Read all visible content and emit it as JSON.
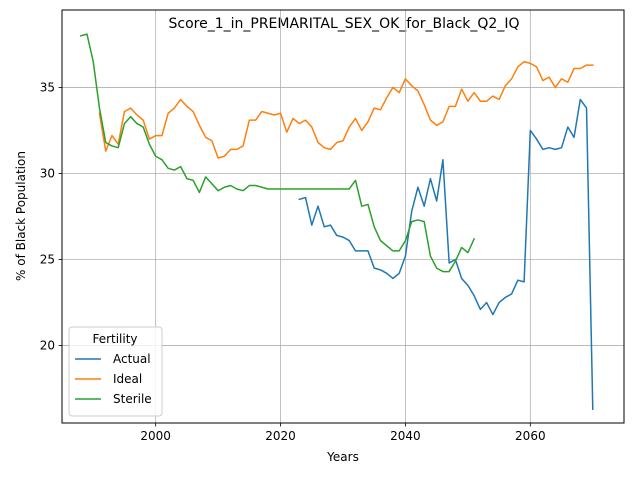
{
  "chart_data": {
    "type": "line",
    "title": "Score_1_in_PREMARITAL_SEX_OK_for_Black_Q2_IQ",
    "xlabel": "Years",
    "ylabel": "% of Black Population",
    "xlim": [
      1985,
      2075
    ],
    "ylim": [
      15.5,
      39.5
    ],
    "xticks": [
      2000,
      2020,
      2040,
      2060
    ],
    "yticks": [
      20,
      25,
      30,
      35
    ],
    "grid": true,
    "legend": {
      "title": "Fertility",
      "position": "lower-left"
    },
    "series": [
      {
        "name": "Actual",
        "color": "#1f77b4",
        "x": [
          2023,
          2024,
          2025,
          2026,
          2027,
          2028,
          2029,
          2030,
          2031,
          2032,
          2033,
          2034,
          2035,
          2036,
          2037,
          2038,
          2039,
          2040,
          2041,
          2042,
          2043,
          2044,
          2045,
          2046,
          2047,
          2048,
          2049,
          2050,
          2051,
          2052,
          2053,
          2054,
          2055,
          2056,
          2057,
          2058,
          2059,
          2060,
          2061,
          2062,
          2063,
          2064,
          2065,
          2066,
          2067,
          2068,
          2069,
          2070
        ],
        "values": [
          28.5,
          28.6,
          27.0,
          28.1,
          26.9,
          27.0,
          26.4,
          26.3,
          26.1,
          25.5,
          25.5,
          25.5,
          24.5,
          24.4,
          24.2,
          23.9,
          24.2,
          25.2,
          27.8,
          29.2,
          28.1,
          29.7,
          28.4,
          30.8,
          24.8,
          25.0,
          23.9,
          23.5,
          22.9,
          22.1,
          22.5,
          21.8,
          22.5,
          22.8,
          23.0,
          23.8,
          23.7,
          32.5,
          32.0,
          31.4,
          31.5,
          31.4,
          31.5,
          32.7,
          32.1,
          34.3,
          33.8,
          16.3
        ]
      },
      {
        "name": "Ideal",
        "color": "#ff7f0e",
        "x": [
          1991,
          1992,
          1993,
          1994,
          1995,
          1996,
          1997,
          1998,
          1999,
          2000,
          2001,
          2002,
          2003,
          2004,
          2005,
          2006,
          2007,
          2008,
          2009,
          2010,
          2011,
          2012,
          2013,
          2014,
          2015,
          2016,
          2017,
          2018,
          2019,
          2020,
          2021,
          2022,
          2023,
          2024,
          2025,
          2026,
          2027,
          2028,
          2029,
          2030,
          2031,
          2032,
          2033,
          2034,
          2035,
          2036,
          2037,
          2038,
          2039,
          2040,
          2041,
          2042,
          2043,
          2044,
          2045,
          2046,
          2047,
          2048,
          2049,
          2050,
          2051,
          2052,
          2053,
          2054,
          2055,
          2056,
          2057,
          2058,
          2059,
          2060,
          2061,
          2062,
          2063,
          2064,
          2065,
          2066,
          2067,
          2068,
          2069,
          2070
        ],
        "values": [
          33.5,
          31.3,
          32.2,
          31.7,
          33.6,
          33.8,
          33.4,
          33.1,
          32.0,
          32.2,
          32.2,
          33.5,
          33.8,
          34.3,
          33.9,
          33.6,
          32.8,
          32.1,
          31.9,
          30.9,
          31.0,
          31.4,
          31.4,
          31.6,
          33.1,
          33.1,
          33.6,
          33.5,
          33.4,
          33.5,
          32.4,
          33.2,
          32.9,
          33.1,
          32.7,
          31.8,
          31.5,
          31.4,
          31.8,
          31.9,
          32.7,
          33.2,
          32.5,
          33.0,
          33.8,
          33.7,
          34.4,
          35.0,
          34.7,
          35.5,
          35.1,
          34.8,
          34.0,
          33.1,
          32.8,
          33.0,
          33.9,
          33.9,
          34.9,
          34.2,
          34.7,
          34.2,
          34.2,
          34.5,
          34.3,
          35.1,
          35.5,
          36.2,
          36.5,
          36.4,
          36.2,
          35.4,
          35.6,
          35.0,
          35.5,
          35.3,
          36.1,
          36.1,
          36.3,
          36.3
        ]
      },
      {
        "name": "Sterile",
        "color": "#2ca02c",
        "x": [
          1988,
          1989,
          1990,
          1991,
          1992,
          1993,
          1994,
          1995,
          1996,
          1997,
          1998,
          1999,
          2000,
          2001,
          2002,
          2003,
          2004,
          2005,
          2006,
          2007,
          2008,
          2009,
          2010,
          2011,
          2012,
          2013,
          2014,
          2015,
          2016,
          2017,
          2018,
          2019,
          2020,
          2021,
          2022,
          2023,
          2024,
          2025,
          2026,
          2027,
          2028,
          2029,
          2030,
          2031,
          2032,
          2033,
          2034,
          2035,
          2036,
          2037,
          2038,
          2039,
          2040,
          2041,
          2042,
          2043,
          2044,
          2045,
          2046,
          2047,
          2048,
          2049,
          2050,
          2051
        ],
        "values": [
          38.0,
          38.1,
          36.5,
          33.8,
          31.8,
          31.6,
          31.5,
          32.9,
          33.3,
          32.9,
          32.7,
          31.7,
          31.0,
          30.8,
          30.3,
          30.2,
          30.4,
          29.7,
          29.6,
          28.9,
          29.8,
          29.4,
          29.0,
          29.2,
          29.3,
          29.1,
          29.0,
          29.3,
          29.3,
          29.2,
          29.1,
          29.1,
          29.1,
          29.1,
          29.1,
          29.1,
          29.1,
          29.1,
          29.1,
          29.1,
          29.1,
          29.1,
          29.1,
          29.1,
          29.6,
          28.1,
          28.2,
          26.9,
          26.1,
          25.8,
          25.5,
          25.5,
          26.1,
          27.2,
          27.3,
          27.2,
          25.2,
          24.5,
          24.3,
          24.3,
          24.9,
          25.7,
          25.4,
          26.2
        ]
      }
    ]
  }
}
